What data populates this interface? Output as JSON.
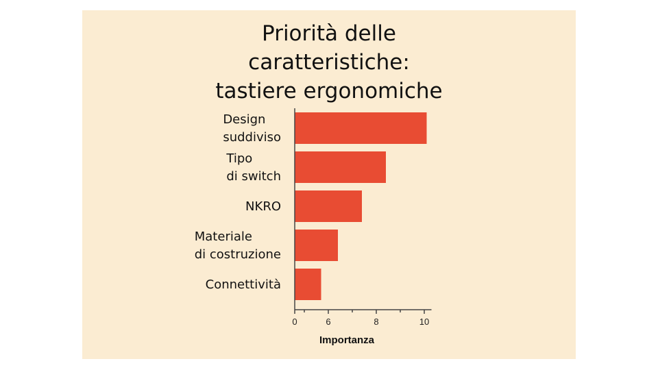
{
  "chart_data": {
    "type": "bar",
    "orientation": "horizontal",
    "title_lines": [
      "Priorità delle",
      "caratteristiche:",
      "tastiere ergonomiche"
    ],
    "categories": [
      [
        "Design",
        "suddiviso"
      ],
      [
        "Tipo",
        "di switch"
      ],
      [
        "NKRO"
      ],
      [
        "Materiale",
        "di costruzione"
      ],
      [
        "Connettività"
      ]
    ],
    "values": [
      10.1,
      8.4,
      7.4,
      6.4,
      5.7
    ],
    "xlabel": "Importanza",
    "x_ticks": [
      0,
      6,
      8,
      10
    ],
    "xlim": [
      0,
      10.5
    ],
    "axis_break_between": [
      0,
      5
    ],
    "grid": false,
    "bar_color": "#e84c33"
  }
}
